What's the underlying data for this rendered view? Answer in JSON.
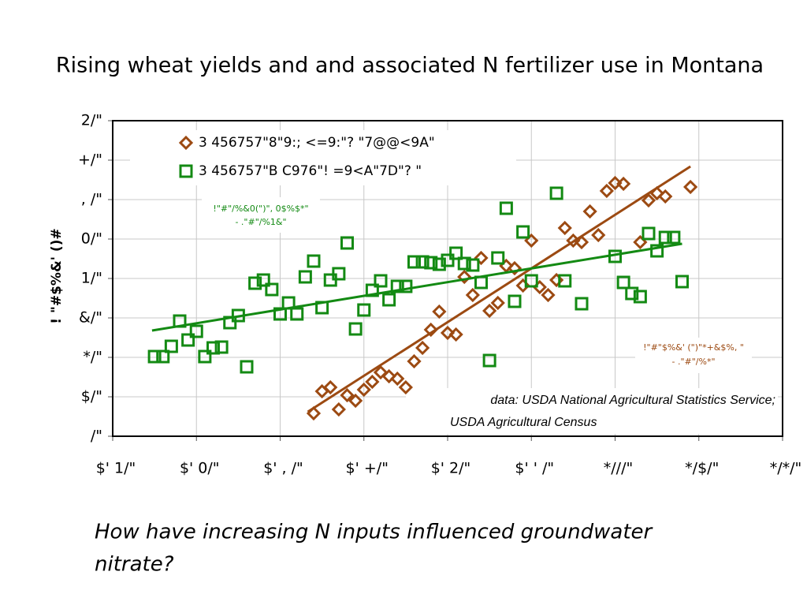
{
  "title": "Rising wheat yields and and associated N fertilizer use in Montana",
  "question": "How have increasing N inputs influenced groundwater nitrate?",
  "chart_data": {
    "type": "scatter",
    "y_label": "! \"#$%&' ()#",
    "source_note": [
      "data: USDA National Agricultural Statistics Service;",
      "USDA Agricultural Census"
    ],
    "xlim": [
      1940,
      2020
    ],
    "ylim": [
      0,
      80
    ],
    "grid": true,
    "xticks": [
      {
        "value": 1940,
        "label": "$' 1/\""
      },
      {
        "value": 1950,
        "label": "$' 0/\""
      },
      {
        "value": 1960,
        "label": "$' , /\""
      },
      {
        "value": 1970,
        "label": "$' +/\""
      },
      {
        "value": 1980,
        "label": "$' 2/\""
      },
      {
        "value": 1990,
        "label": "$' ' /\""
      },
      {
        "value": 2000,
        "label": "*///\""
      },
      {
        "value": 2010,
        "label": "*/$/\""
      },
      {
        "value": 2020,
        "label": "*/*/\""
      }
    ],
    "yticks": [
      {
        "value": 0,
        "label": "/\""
      },
      {
        "value": 10,
        "label": "$/\""
      },
      {
        "value": 20,
        "label": "*/\""
      },
      {
        "value": 30,
        "label": "&/\""
      },
      {
        "value": 40,
        "label": "1/\""
      },
      {
        "value": 50,
        "label": "0/\""
      },
      {
        "value": 60,
        "label": ", /\""
      },
      {
        "value": 70,
        "label": "+/\""
      },
      {
        "value": 80,
        "label": "2/\""
      }
    ],
    "series": [
      {
        "name": "3 456757\"8\"9:; <=9:\"? \"7@@<9A\"",
        "color": "#9c4a12",
        "marker": "diamond",
        "annotation": [
          "!\"#\"$%&' (\")\"*+&$%, \"",
          "- .\"#\"/%*\""
        ],
        "x": [
          1964,
          1965,
          1966,
          1967,
          1968,
          1969,
          1970,
          1971,
          1972,
          1973,
          1974,
          1975,
          1976,
          1977,
          1978,
          1979,
          1980,
          1981,
          1982,
          1983,
          1984,
          1985,
          1986,
          1987,
          1988,
          1989,
          1990,
          1991,
          1992,
          1993,
          1994,
          1995,
          1996,
          1997,
          1998,
          1999,
          2000,
          2001,
          2003,
          2004,
          2005,
          2006,
          2009
        ],
        "values": [
          5.8,
          11.4,
          12.4,
          6.8,
          10.4,
          9,
          11.8,
          13.8,
          16.2,
          15.2,
          14.6,
          12.4,
          19,
          22.4,
          27,
          31.6,
          26.2,
          25.8,
          40.4,
          35.8,
          45.2,
          31.8,
          33.8,
          43.2,
          42.6,
          38.2,
          49.6,
          37.8,
          35.8,
          39.6,
          52.8,
          49.6,
          49.2,
          57,
          51,
          62.2,
          64.2,
          64,
          49.2,
          59.8,
          61.6,
          60.8,
          63.2
        ],
        "trend_x": [
          1963.3,
          2009
        ],
        "trend_y": [
          6.2,
          68.4
        ]
      },
      {
        "name": "3 456757\"B C976\"! =9<A\"7D\"? \"",
        "color": "#138a13",
        "marker": "square",
        "annotation": [
          "!\"#\"/%&0(\")\", 0$%$*\"",
          "- .\"#\"/%1&\""
        ],
        "x": [
          1945,
          1946,
          1947,
          1948,
          1949,
          1950,
          1951,
          1952,
          1953,
          1954,
          1955,
          1956,
          1957,
          1958,
          1959,
          1960,
          1961,
          1962,
          1963,
          1964,
          1965,
          1966,
          1967,
          1968,
          1969,
          1970,
          1971,
          1972,
          1973,
          1974,
          1975,
          1976,
          1977,
          1978,
          1979,
          1980,
          1981,
          1982,
          1983,
          1984,
          1985,
          1986,
          1987,
          1988,
          1989,
          1990,
          1993,
          1994,
          1996,
          2000,
          2001,
          2002,
          2003,
          2004,
          2005,
          2006,
          2007,
          2008
        ],
        "values": [
          20.2,
          20.2,
          22.8,
          29.2,
          24.4,
          26.6,
          20.2,
          22.4,
          22.6,
          28.8,
          30.6,
          17.6,
          38.8,
          39.6,
          37.2,
          31,
          33.8,
          31,
          40.4,
          44.4,
          32.6,
          39.6,
          41.2,
          49,
          27.2,
          32,
          37,
          39.4,
          34.6,
          38,
          38,
          44.2,
          44.2,
          44,
          43.6,
          44.6,
          46.4,
          43.8,
          43.4,
          39,
          19.2,
          45.2,
          57.8,
          34.2,
          51.8,
          39.4,
          61.6,
          39.4,
          33.6,
          45.6,
          39,
          36.2,
          35.4,
          51.4,
          47,
          50.4,
          50.4,
          39.2
        ],
        "trend_x": [
          1944.7,
          2008
        ],
        "trend_y": [
          26.8,
          48.8
        ]
      }
    ]
  }
}
